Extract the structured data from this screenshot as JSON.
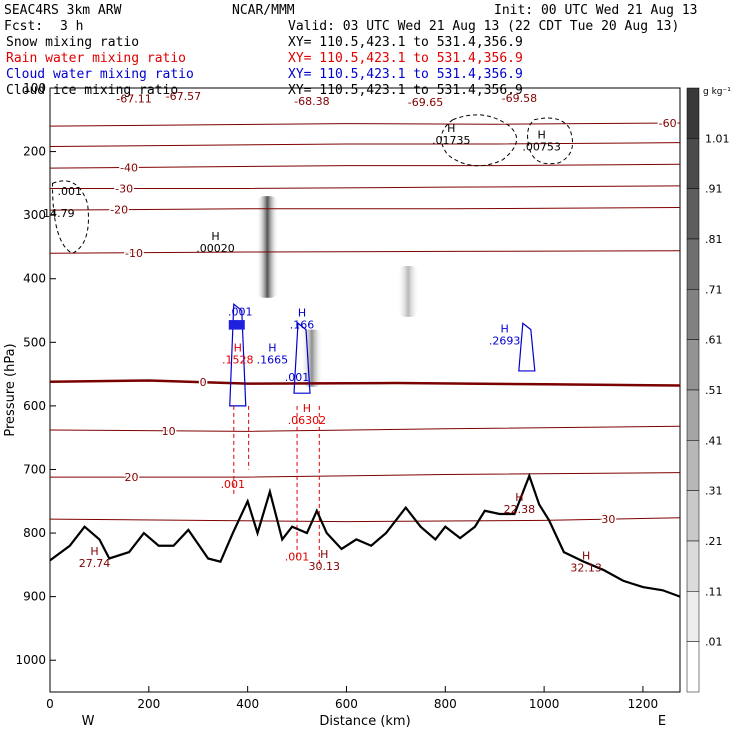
{
  "header": {
    "model": "SEAC4RS  3km ARW",
    "center": "NCAR/MMM",
    "init": "Init: 00 UTC Wed 21 Aug 13",
    "fcst_label": "Fcst:",
    "fcst_value": "3 h",
    "valid": "Valid: 03 UTC Wed 21 Aug 13 (22 CDT Tue 20 Aug 13)"
  },
  "legend": [
    {
      "name": "Snow mixing ratio",
      "color": "#000000",
      "xy": ""
    },
    {
      "name": "Rain water mixing ratio",
      "color": "#e00000",
      "xy": "XY= 110.5,423.1 to 531.4,356.9"
    },
    {
      "name": "Cloud water mixing ratio",
      "color": "#0000d0",
      "xy": "XY= 110.5,423.1 to 531.4,356.9"
    },
    {
      "name": "Cloud ice mixing ratio",
      "color": "#000000",
      "xy": "XY= 110.5,423.1 to 531.4,356.9"
    }
  ],
  "snow_xy": "XY= 110.5,423.1 to 531.4,356.9",
  "colorbar": {
    "unit": "g kg⁻¹",
    "ticks": [
      ".01",
      ".11",
      ".21",
      ".31",
      ".41",
      ".51",
      ".61",
      ".71",
      ".81",
      ".91",
      "1.01"
    ]
  },
  "chart_data": {
    "type": "cross-section",
    "xlabel": "Distance (km)",
    "ylabel": "Pressure (hPa)",
    "xlim": [
      0,
      1275
    ],
    "ylim": [
      1050,
      100
    ],
    "x_ticks": [
      0,
      200,
      400,
      600,
      800,
      1000,
      1200
    ],
    "y_ticks": [
      100,
      200,
      300,
      400,
      500,
      600,
      700,
      800,
      900,
      1000
    ],
    "x_tick_labels": [
      "0",
      "200",
      "400",
      "600",
      "800",
      "1000",
      "1200"
    ],
    "y_tick_labels": [
      "100",
      "200",
      "300",
      "400",
      "500",
      "600",
      "700",
      "800",
      "900",
      "1000"
    ],
    "west_label": "W",
    "east_label": "E",
    "temperature_contours": [
      {
        "value": -60,
        "label": "-60",
        "label_x": 1250,
        "p": [
          [
            0,
            160
          ],
          [
            300,
            158
          ],
          [
            600,
            156
          ],
          [
            900,
            157
          ],
          [
            1275,
            155
          ]
        ]
      },
      {
        "value": -50,
        "label": "",
        "label_x": 0,
        "p": [
          [
            0,
            192
          ],
          [
            300,
            190
          ],
          [
            600,
            188
          ],
          [
            900,
            188
          ],
          [
            1275,
            186
          ]
        ]
      },
      {
        "value": -40,
        "label": "-40",
        "label_x": 160,
        "p": [
          [
            0,
            226
          ],
          [
            300,
            224
          ],
          [
            600,
            222
          ],
          [
            900,
            222
          ],
          [
            1275,
            220
          ]
        ]
      },
      {
        "value": -30,
        "label": "-30",
        "label_x": 150,
        "p": [
          [
            0,
            258
          ],
          [
            400,
            258
          ],
          [
            800,
            256
          ],
          [
            1275,
            254
          ]
        ]
      },
      {
        "value": -20,
        "label": "-20",
        "label_x": 140,
        "p": [
          [
            0,
            292
          ],
          [
            400,
            290
          ],
          [
            800,
            290
          ],
          [
            1275,
            288
          ]
        ]
      },
      {
        "value": -10,
        "label": "-10",
        "label_x": 170,
        "p": [
          [
            0,
            360
          ],
          [
            400,
            358
          ],
          [
            800,
            357
          ],
          [
            1275,
            356
          ]
        ]
      },
      {
        "value": 0,
        "label": "0",
        "label_x": 310,
        "p": [
          [
            0,
            562
          ],
          [
            200,
            560
          ],
          [
            400,
            565
          ],
          [
            700,
            564
          ],
          [
            1000,
            566
          ],
          [
            1275,
            568
          ]
        ],
        "bold": true
      },
      {
        "value": 10,
        "label": "10",
        "label_x": 240,
        "p": [
          [
            0,
            638
          ],
          [
            400,
            640
          ],
          [
            800,
            636
          ],
          [
            1275,
            632
          ]
        ]
      },
      {
        "value": 20,
        "label": "20",
        "label_x": 165,
        "p": [
          [
            0,
            712
          ],
          [
            400,
            712
          ],
          [
            800,
            708
          ],
          [
            1275,
            705
          ]
        ]
      },
      {
        "value": 30,
        "label": "30",
        "label_x": 1130,
        "p": [
          [
            0,
            778
          ],
          [
            600,
            782
          ],
          [
            1000,
            780
          ],
          [
            1275,
            776
          ]
        ]
      }
    ],
    "top_labels": [
      {
        "text": "-67.11",
        "x": 170,
        "p": 123
      },
      {
        "text": "-67.57",
        "x": 270,
        "p": 119
      },
      {
        "text": "-68.38",
        "x": 530,
        "p": 127
      },
      {
        "text": "-69.65",
        "x": 760,
        "p": 128
      },
      {
        "text": "-69.58",
        "x": 950,
        "p": 122
      }
    ],
    "maxima": [
      {
        "text": "H",
        "val": ".00020",
        "x": 335,
        "p": 355,
        "color": "#000000"
      },
      {
        "text": "H",
        "val": ".01735",
        "x": 812,
        "p": 185,
        "color": "#000000"
      },
      {
        "text": "H",
        "val": ".00753",
        "x": 995,
        "p": 195,
        "color": "#000000"
      },
      {
        "text": "",
        "val": "14.79",
        "x": 18,
        "p": 300,
        "color": "#000000"
      },
      {
        "text": "",
        "val": ".001",
        "x": 40,
        "p": 265,
        "color": "#000000"
      },
      {
        "text": "H",
        "val": ".1665",
        "x": 450,
        "p": 530,
        "color": "#0000d0"
      },
      {
        "text": "H",
        "val": ".1528",
        "x": 380,
        "p": 530,
        "color": "#e00000"
      },
      {
        "text": "H",
        "val": ".166",
        "x": 510,
        "p": 475,
        "color": "#0000d0"
      },
      {
        "text": "",
        "val": ".001",
        "x": 500,
        "p": 558,
        "color": "#0000d0"
      },
      {
        "text": "",
        "val": ".001",
        "x": 385,
        "p": 455,
        "color": "#0000d0"
      },
      {
        "text": "H",
        "val": ".2693",
        "x": 920,
        "p": 500,
        "color": "#0000d0"
      },
      {
        "text": "H",
        "val": ".06302",
        "x": 520,
        "p": 625,
        "color": "#e00000"
      },
      {
        "text": "",
        "val": ".001",
        "x": 370,
        "p": 726,
        "color": "#e00000"
      },
      {
        "text": "",
        "val": ".001",
        "x": 500,
        "p": 840,
        "color": "#e00000"
      },
      {
        "text": "H",
        "val": "30.13",
        "x": 555,
        "p": 855,
        "color": "#800000"
      },
      {
        "text": "H",
        "val": "27.74",
        "x": 90,
        "p": 850,
        "color": "#800000"
      },
      {
        "text": "H",
        "val": "22.38",
        "x": 950,
        "p": 765,
        "color": "#800000"
      },
      {
        "text": "H",
        "val": "32.13",
        "x": 1085,
        "p": 857,
        "color": "#800000"
      }
    ],
    "terrain": [
      [
        0,
        843
      ],
      [
        40,
        820
      ],
      [
        70,
        790
      ],
      [
        100,
        810
      ],
      [
        120,
        840
      ],
      [
        160,
        830
      ],
      [
        190,
        800
      ],
      [
        220,
        820
      ],
      [
        250,
        820
      ],
      [
        280,
        795
      ],
      [
        320,
        840
      ],
      [
        345,
        845
      ],
      [
        370,
        800
      ],
      [
        400,
        750
      ],
      [
        420,
        800
      ],
      [
        445,
        735
      ],
      [
        470,
        810
      ],
      [
        490,
        790
      ],
      [
        520,
        800
      ],
      [
        540,
        765
      ],
      [
        560,
        800
      ],
      [
        590,
        825
      ],
      [
        620,
        810
      ],
      [
        650,
        820
      ],
      [
        680,
        800
      ],
      [
        720,
        760
      ],
      [
        750,
        790
      ],
      [
        780,
        810
      ],
      [
        800,
        790
      ],
      [
        830,
        808
      ],
      [
        860,
        790
      ],
      [
        880,
        765
      ],
      [
        910,
        770
      ],
      [
        940,
        770
      ],
      [
        970,
        710
      ],
      [
        990,
        755
      ],
      [
        1010,
        780
      ],
      [
        1040,
        830
      ],
      [
        1080,
        845
      ],
      [
        1120,
        858
      ],
      [
        1160,
        875
      ],
      [
        1200,
        885
      ],
      [
        1240,
        890
      ],
      [
        1275,
        900
      ]
    ],
    "snow_columns": [
      {
        "x": 440,
        "p_top": 270,
        "p_bot": 430,
        "intensity": 0.85
      },
      {
        "x": 530,
        "p_top": 480,
        "p_bot": 570,
        "intensity": 0.55
      },
      {
        "x": 725,
        "p_top": 380,
        "p_bot": 460,
        "intensity": 0.35
      }
    ]
  }
}
